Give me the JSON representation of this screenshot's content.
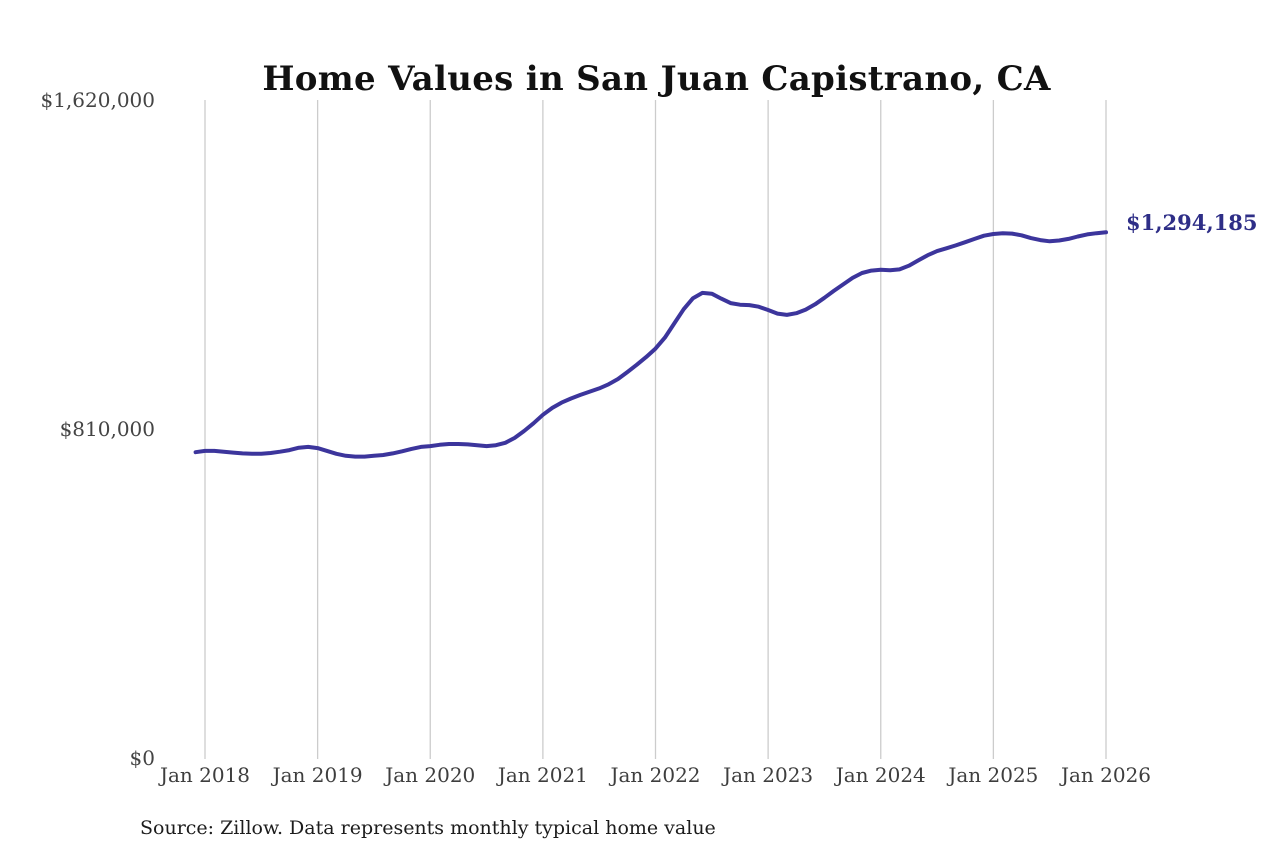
{
  "page": {
    "background_color": "#ffffff"
  },
  "header": {
    "title": "Home Values in San Juan Capistrano, CA"
  },
  "footer": {
    "source_note": "Source: Zillow. Data represents monthly typical home value"
  },
  "colors": {
    "line": "#3c359c",
    "end_label": "#2e2e87",
    "gridline": "#cccccc",
    "tick_text": "#434343",
    "title_text": "#111111"
  },
  "chart_data": {
    "type": "line",
    "title": "Home Values in San Juan Capistrano, CA",
    "xlabel": "",
    "ylabel": "",
    "ylim": [
      0,
      1620000
    ],
    "grid": "vertical-only",
    "legend": "none",
    "y_ticks": [
      {
        "label": "$0",
        "value": 0
      },
      {
        "label": "$810,000",
        "value": 810000
      },
      {
        "label": "$1,620,000",
        "value": 1620000
      }
    ],
    "x_ticks": [
      {
        "label": "Jan 2018",
        "month_index": 1
      },
      {
        "label": "Jan 2019",
        "month_index": 13
      },
      {
        "label": "Jan 2020",
        "month_index": 25
      },
      {
        "label": "Jan 2021",
        "month_index": 37
      },
      {
        "label": "Jan 2022",
        "month_index": 49
      },
      {
        "label": "Jan 2023",
        "month_index": 61
      },
      {
        "label": "Jan 2024",
        "month_index": 73
      },
      {
        "label": "Jan 2025",
        "month_index": 85
      },
      {
        "label": "Jan 2026",
        "month_index": 97
      }
    ],
    "series": [
      {
        "name": "Monthly typical home value",
        "start_month": "2017-12",
        "end_month": "2026-01",
        "interval": "monthly",
        "values": [
          753000,
          756000,
          756000,
          754000,
          752000,
          750000,
          749000,
          749000,
          751000,
          754000,
          758000,
          764000,
          766000,
          763000,
          756000,
          749000,
          744000,
          742000,
          742000,
          744000,
          746000,
          750000,
          755000,
          761000,
          766000,
          768000,
          771000,
          773000,
          773000,
          772000,
          770000,
          768000,
          770000,
          776000,
          788000,
          805000,
          824000,
          845000,
          862000,
          875000,
          885000,
          894000,
          902000,
          910000,
          920000,
          933000,
          950000,
          968000,
          987000,
          1008000,
          1035000,
          1070000,
          1105000,
          1132000,
          1145000,
          1143000,
          1131000,
          1120000,
          1116000,
          1115000,
          1111000,
          1103000,
          1094000,
          1091000,
          1095000,
          1104000,
          1117000,
          1133000,
          1150000,
          1166000,
          1182000,
          1194000,
          1200000,
          1202000,
          1201000,
          1203000,
          1212000,
          1225000,
          1238000,
          1248000,
          1255000,
          1262000,
          1270000,
          1278000,
          1286000,
          1290000,
          1292000,
          1291000,
          1287000,
          1280000,
          1275000,
          1272000,
          1274000,
          1278000,
          1284000,
          1289000,
          1292000,
          1294185
        ]
      }
    ],
    "annotation": {
      "text": "$1,294,185",
      "value": 1294185,
      "attached_to": "last_point"
    }
  }
}
